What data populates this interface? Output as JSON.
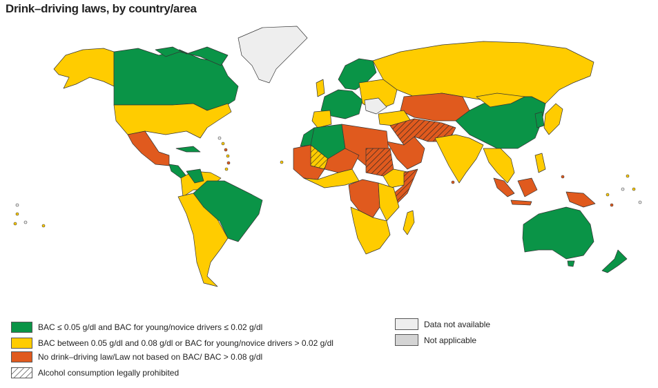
{
  "title": "Drink–driving laws, by country/area",
  "colors": {
    "green": "#0a9447",
    "yellow": "#ffcc00",
    "orange": "#e05a1e",
    "not_available": "#eeeeee",
    "not_applicable": "#d4d4d4"
  },
  "legend": {
    "items": [
      {
        "label": "BAC ≤ 0.05 g/dl and BAC for young/novice drivers ≤ 0.02 g/dl",
        "color": "#0a9447"
      },
      {
        "label": "BAC  between 0.05 g/dl and 0.08 g/dl or BAC for young/novice drivers > 0.02 g/dl",
        "color": "#ffcc00"
      },
      {
        "label": "No drink–driving law/Law not based on BAC/ BAC > 0.08 g/dl",
        "color": "#e05a1e"
      },
      {
        "label": "Alcohol consumption legally prohibited",
        "pattern": "hatch"
      }
    ],
    "extra": [
      {
        "label": "Data not available",
        "color": "#eeeeee"
      },
      {
        "label": "Not applicable",
        "color": "#d4d4d4"
      }
    ]
  }
}
